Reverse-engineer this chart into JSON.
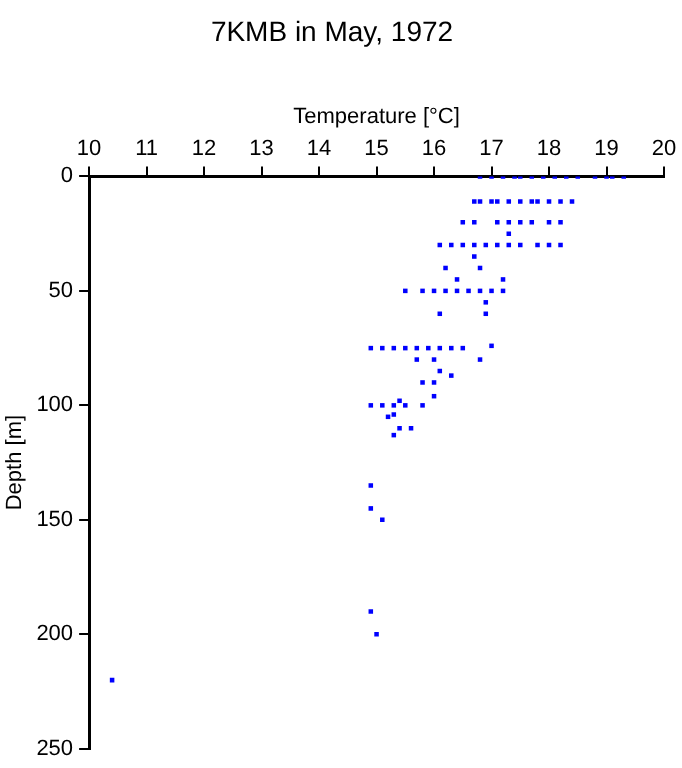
{
  "chart_data": {
    "type": "scatter",
    "title": "7KMB in May, 1972",
    "xlabel": "Temperature [°C]",
    "ylabel": "Depth [m]",
    "xlim": [
      10,
      20
    ],
    "xticks": [
      10,
      11,
      12,
      13,
      14,
      15,
      16,
      17,
      18,
      19,
      20
    ],
    "ylim": [
      250,
      0
    ],
    "yticks": [
      0,
      50,
      100,
      150,
      200,
      250
    ],
    "grid": false,
    "legend": false,
    "marker": "square",
    "series": [
      {
        "color": "#0000ff",
        "x": [
          16.8,
          17.0,
          17.2,
          17.4,
          17.5,
          17.7,
          17.9,
          18.1,
          18.3,
          18.5,
          18.8,
          19.0,
          19.1,
          19.3,
          16.7,
          16.8,
          17.0,
          17.1,
          17.3,
          17.5,
          17.7,
          17.8,
          18.0,
          18.2,
          18.4,
          16.5,
          16.7,
          17.1,
          17.3,
          17.5,
          17.7,
          18.0,
          18.2,
          17.3,
          16.1,
          16.3,
          16.5,
          16.7,
          16.9,
          17.1,
          17.3,
          17.5,
          17.8,
          18.0,
          18.2,
          16.7,
          16.2,
          16.8,
          16.4,
          17.2,
          15.5,
          15.8,
          16.0,
          16.2,
          16.4,
          16.6,
          16.8,
          17.0,
          17.2,
          16.9,
          16.1,
          16.9,
          14.9,
          15.1,
          15.3,
          15.5,
          15.7,
          15.9,
          16.1,
          16.3,
          16.5,
          17.0,
          15.7,
          16.0,
          16.8,
          16.1,
          16.3,
          15.8,
          16.0,
          16.0,
          15.4,
          14.9,
          15.1,
          15.3,
          15.5,
          15.8,
          15.3,
          15.2,
          15.4,
          15.6,
          15.3,
          14.9,
          14.9,
          15.1,
          14.9,
          15.0,
          10.4
        ],
        "values": [
          0,
          0,
          0,
          0,
          0,
          0,
          0,
          0,
          0,
          0,
          0,
          0,
          0,
          0,
          11,
          11,
          11,
          11,
          11,
          11,
          11,
          11,
          11,
          11,
          11,
          20,
          20,
          20,
          20,
          20,
          20,
          20,
          20,
          25,
          30,
          30,
          30,
          30,
          30,
          30,
          30,
          30,
          30,
          30,
          30,
          35,
          40,
          40,
          45,
          45,
          50,
          50,
          50,
          50,
          50,
          50,
          50,
          50,
          50,
          55,
          60,
          60,
          75,
          75,
          75,
          75,
          75,
          75,
          75,
          75,
          75,
          74,
          80,
          80,
          80,
          85,
          87,
          90,
          90,
          96,
          98,
          100,
          100,
          100,
          100,
          100,
          104,
          105,
          110,
          110,
          113,
          135,
          145,
          150,
          190,
          200,
          220
        ]
      }
    ]
  }
}
